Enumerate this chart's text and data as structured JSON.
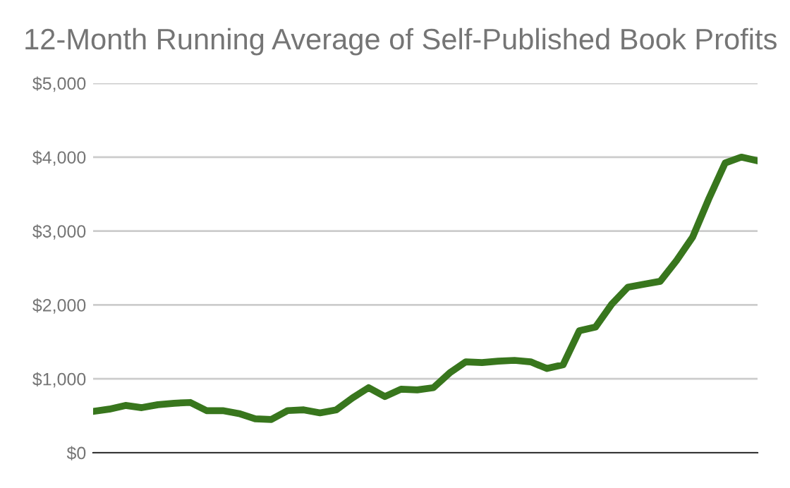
{
  "chart_data": {
    "type": "line",
    "title": "12-Month Running Average of Self-Published Book Profits",
    "categories": [
      null,
      null,
      null,
      null,
      null,
      null,
      null,
      null,
      null,
      null,
      null,
      null,
      null,
      null,
      null,
      null,
      null,
      null,
      null,
      null,
      null,
      null,
      null,
      null,
      null,
      null,
      null,
      null,
      null,
      null,
      null,
      null,
      null,
      null,
      null,
      null,
      null,
      null,
      null,
      null,
      null,
      null
    ],
    "series": [
      {
        "color": "#38761d",
        "values": [
          560,
          590,
          640,
          610,
          650,
          670,
          680,
          570,
          570,
          530,
          460,
          450,
          570,
          580,
          540,
          580,
          740,
          880,
          760,
          860,
          850,
          880,
          1080,
          1230,
          1220,
          1240,
          1250,
          1230,
          1140,
          1190,
          1650,
          1700,
          2010,
          2240,
          2280,
          2320,
          2600,
          2920,
          3440,
          3920,
          4000,
          3950
        ]
      }
    ],
    "ylim": [
      0,
      5000
    ],
    "yticks": [
      {
        "value": 0,
        "label": "$0"
      },
      {
        "value": 1000,
        "label": "$1,000"
      },
      {
        "value": 2000,
        "label": "$2,000"
      },
      {
        "value": 3000,
        "label": "$3,000"
      },
      {
        "value": 4000,
        "label": "$4,000"
      },
      {
        "value": 5000,
        "label": "$5,000"
      }
    ],
    "grid": "y",
    "marker": "none",
    "line_style": "solid"
  }
}
